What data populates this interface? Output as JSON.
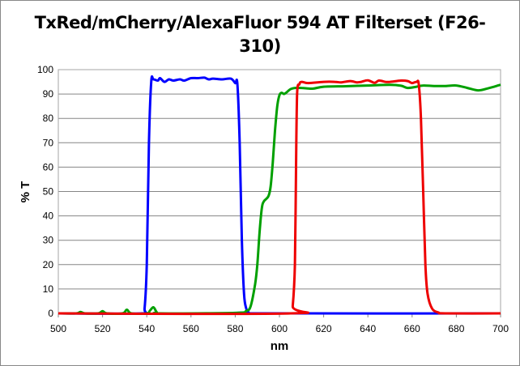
{
  "chart_data": {
    "type": "line",
    "title_line1": "TxRed/mCherry/AlexaFluor 594 AT Filterset (F26-",
    "title_line2": "310)",
    "xlabel": "nm",
    "ylabel": "% T",
    "xlim": [
      500,
      700
    ],
    "ylim": [
      0,
      100
    ],
    "xticks": [
      500,
      520,
      540,
      560,
      580,
      600,
      620,
      640,
      660,
      680,
      700
    ],
    "yticks": [
      0,
      10,
      20,
      30,
      40,
      50,
      60,
      70,
      80,
      90,
      100
    ],
    "grid": "horizontal",
    "legend": "none",
    "series": [
      {
        "color": "#0000ff",
        "x": [
          500,
          538,
          539,
          540,
          541,
          542,
          543,
          545,
          546,
          548,
          550,
          552,
          555,
          557,
          560,
          563,
          566,
          568,
          570,
          574,
          578,
          580,
          581,
          582,
          583,
          584,
          585,
          586,
          588,
          700
        ],
        "y": [
          0,
          0,
          2,
          20,
          70,
          95,
          96,
          95.5,
          96.5,
          95,
          96,
          95.5,
          96,
          95.5,
          96.5,
          96.5,
          96.7,
          96,
          96.3,
          96,
          96.3,
          94.5,
          94,
          70,
          30,
          8,
          2,
          0.5,
          0,
          0
        ]
      },
      {
        "color": "#00a000",
        "x": [
          500,
          508,
          510,
          512,
          518,
          520,
          522,
          529,
          531,
          533,
          540,
          541.5,
          543,
          544.5,
          546,
          580,
          585,
          587,
          589,
          590,
          591,
          592,
          593,
          595,
          596,
          597,
          598,
          599,
          600,
          601,
          602,
          603,
          605,
          607,
          610,
          615,
          620,
          630,
          640,
          650,
          655,
          658,
          662,
          665,
          670,
          675,
          680,
          685,
          690,
          695,
          700
        ],
        "y": [
          0,
          0,
          0.6,
          0,
          0,
          0.9,
          0,
          0,
          1.5,
          0,
          0,
          1.2,
          2.5,
          0.5,
          0,
          0.2,
          1,
          3,
          12,
          20,
          33,
          43,
          46,
          48,
          52,
          62,
          75,
          85,
          89.5,
          90.5,
          90,
          90.5,
          92,
          92.5,
          92.5,
          92.2,
          93,
          93.2,
          93.5,
          93.8,
          93.4,
          92.5,
          93,
          93.5,
          93.3,
          93.3,
          93.5,
          92.5,
          91.5,
          92.5,
          93.8
        ]
      },
      {
        "color": "#ee0000",
        "x": [
          500,
          605,
          606,
          607,
          607.5,
          608,
          609,
          610,
          613,
          620,
          625,
          628,
          632,
          635,
          637,
          640,
          643,
          645,
          648,
          650,
          655,
          658,
          660,
          662,
          663,
          664,
          665,
          666,
          667,
          669,
          672,
          675,
          700
        ],
        "y": [
          0,
          0,
          3,
          20,
          60,
          90,
          94,
          95,
          94.5,
          95,
          95,
          94.8,
          95.3,
          94.8,
          95,
          95.6,
          94.6,
          95.5,
          95,
          95,
          95.5,
          95.3,
          94.5,
          95,
          94,
          80,
          50,
          20,
          8,
          2,
          0.3,
          0,
          0
        ]
      }
    ]
  }
}
